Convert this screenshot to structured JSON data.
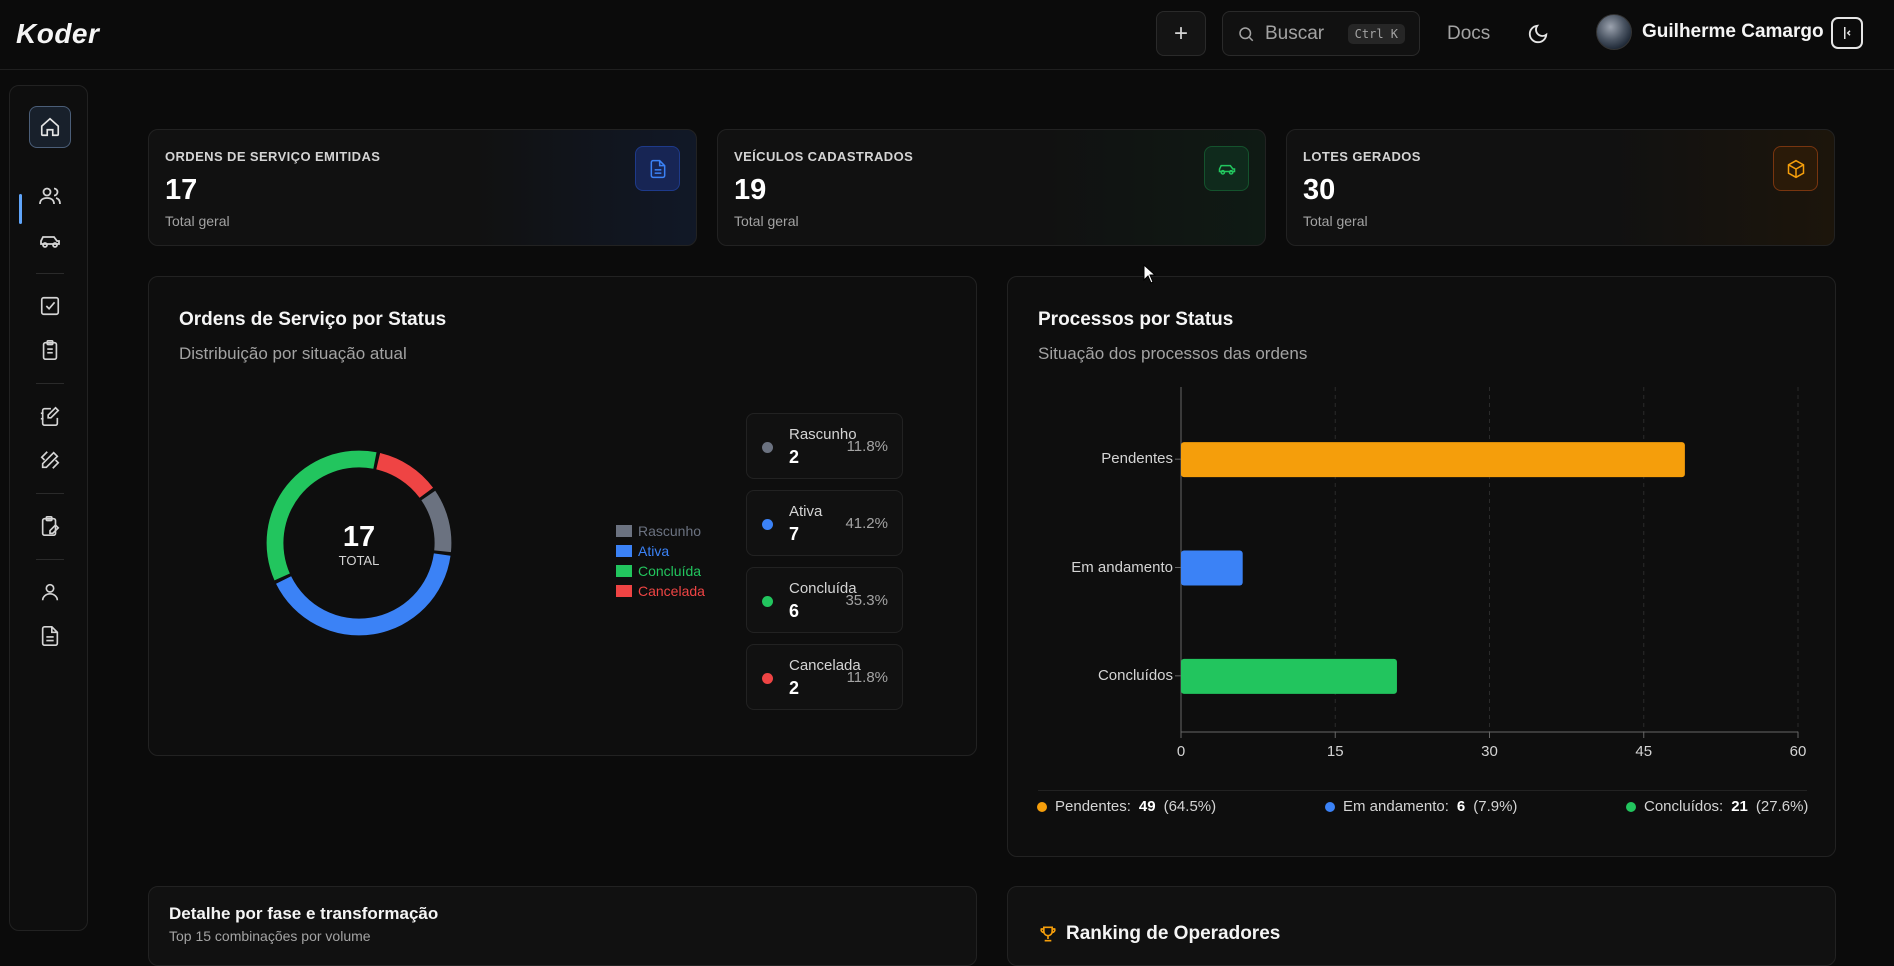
{
  "header": {
    "logo": "Koder",
    "search_placeholder": "Buscar",
    "search_shortcut": "Ctrl K",
    "docs_label": "Docs",
    "user_name": "Guilherme Camargo"
  },
  "stats": [
    {
      "label": "ORDENS DE SERVIÇO EMITIDAS",
      "value": "17",
      "sub": "Total geral",
      "icon": "file-text-icon",
      "color": "#3b82f6"
    },
    {
      "label": "VEÍCULOS CADASTRADOS",
      "value": "19",
      "sub": "Total geral",
      "icon": "car-icon",
      "color": "#22c55e"
    },
    {
      "label": "LOTES GERADOS",
      "value": "30",
      "sub": "Total geral",
      "icon": "package-icon",
      "color": "#f59e0b"
    }
  ],
  "orders_card": {
    "title": "Ordens de Serviço por Status",
    "subtitle": "Distribuição por situação atual",
    "center_value": "17",
    "center_label": "TOTAL"
  },
  "status_items": [
    {
      "name": "Rascunho",
      "count": "2",
      "pct": "11.8%",
      "color": "#6b7280"
    },
    {
      "name": "Ativa",
      "count": "7",
      "pct": "41.2%",
      "color": "#3b82f6"
    },
    {
      "name": "Concluída",
      "count": "6",
      "pct": "35.3%",
      "color": "#22c55e"
    },
    {
      "name": "Cancelada",
      "count": "2",
      "pct": "11.8%",
      "color": "#ef4444"
    }
  ],
  "process_card": {
    "title": "Processos por Status",
    "subtitle": "Situação dos processos das ordens",
    "legend": [
      {
        "label": "Pendentes:",
        "value": "49",
        "pct": "(64.5%)",
        "color": "#f59e0b"
      },
      {
        "label": "Em andamento:",
        "value": "6",
        "pct": "(7.9%)",
        "color": "#3b82f6"
      },
      {
        "label": "Concluídos:",
        "value": "21",
        "pct": "(27.6%)",
        "color": "#22c55e"
      }
    ]
  },
  "detail_card": {
    "title": "Detalhe por fase e transformação",
    "subtitle": "Top 15 combinações por volume"
  },
  "ranking_card": {
    "title": "Ranking de Operadores"
  },
  "chart_data": [
    {
      "type": "pie",
      "categories": [
        "Rascunho",
        "Ativa",
        "Concluída",
        "Cancelada"
      ],
      "values": [
        2,
        7,
        6,
        2
      ],
      "colors": [
        "#6b7280",
        "#3b82f6",
        "#22c55e",
        "#ef4444"
      ],
      "legend": "right"
    },
    {
      "type": "bar",
      "orientation": "horizontal",
      "categories": [
        "Pendentes",
        "Em andamento",
        "Concluídos"
      ],
      "values": [
        49,
        6,
        21
      ],
      "colors": [
        "#f59e0b",
        "#3b82f6",
        "#22c55e"
      ],
      "xlim": [
        0,
        60
      ],
      "xticks": [
        "0",
        "15",
        "30",
        "45",
        "60"
      ],
      "grid": "vertical dashed"
    }
  ]
}
